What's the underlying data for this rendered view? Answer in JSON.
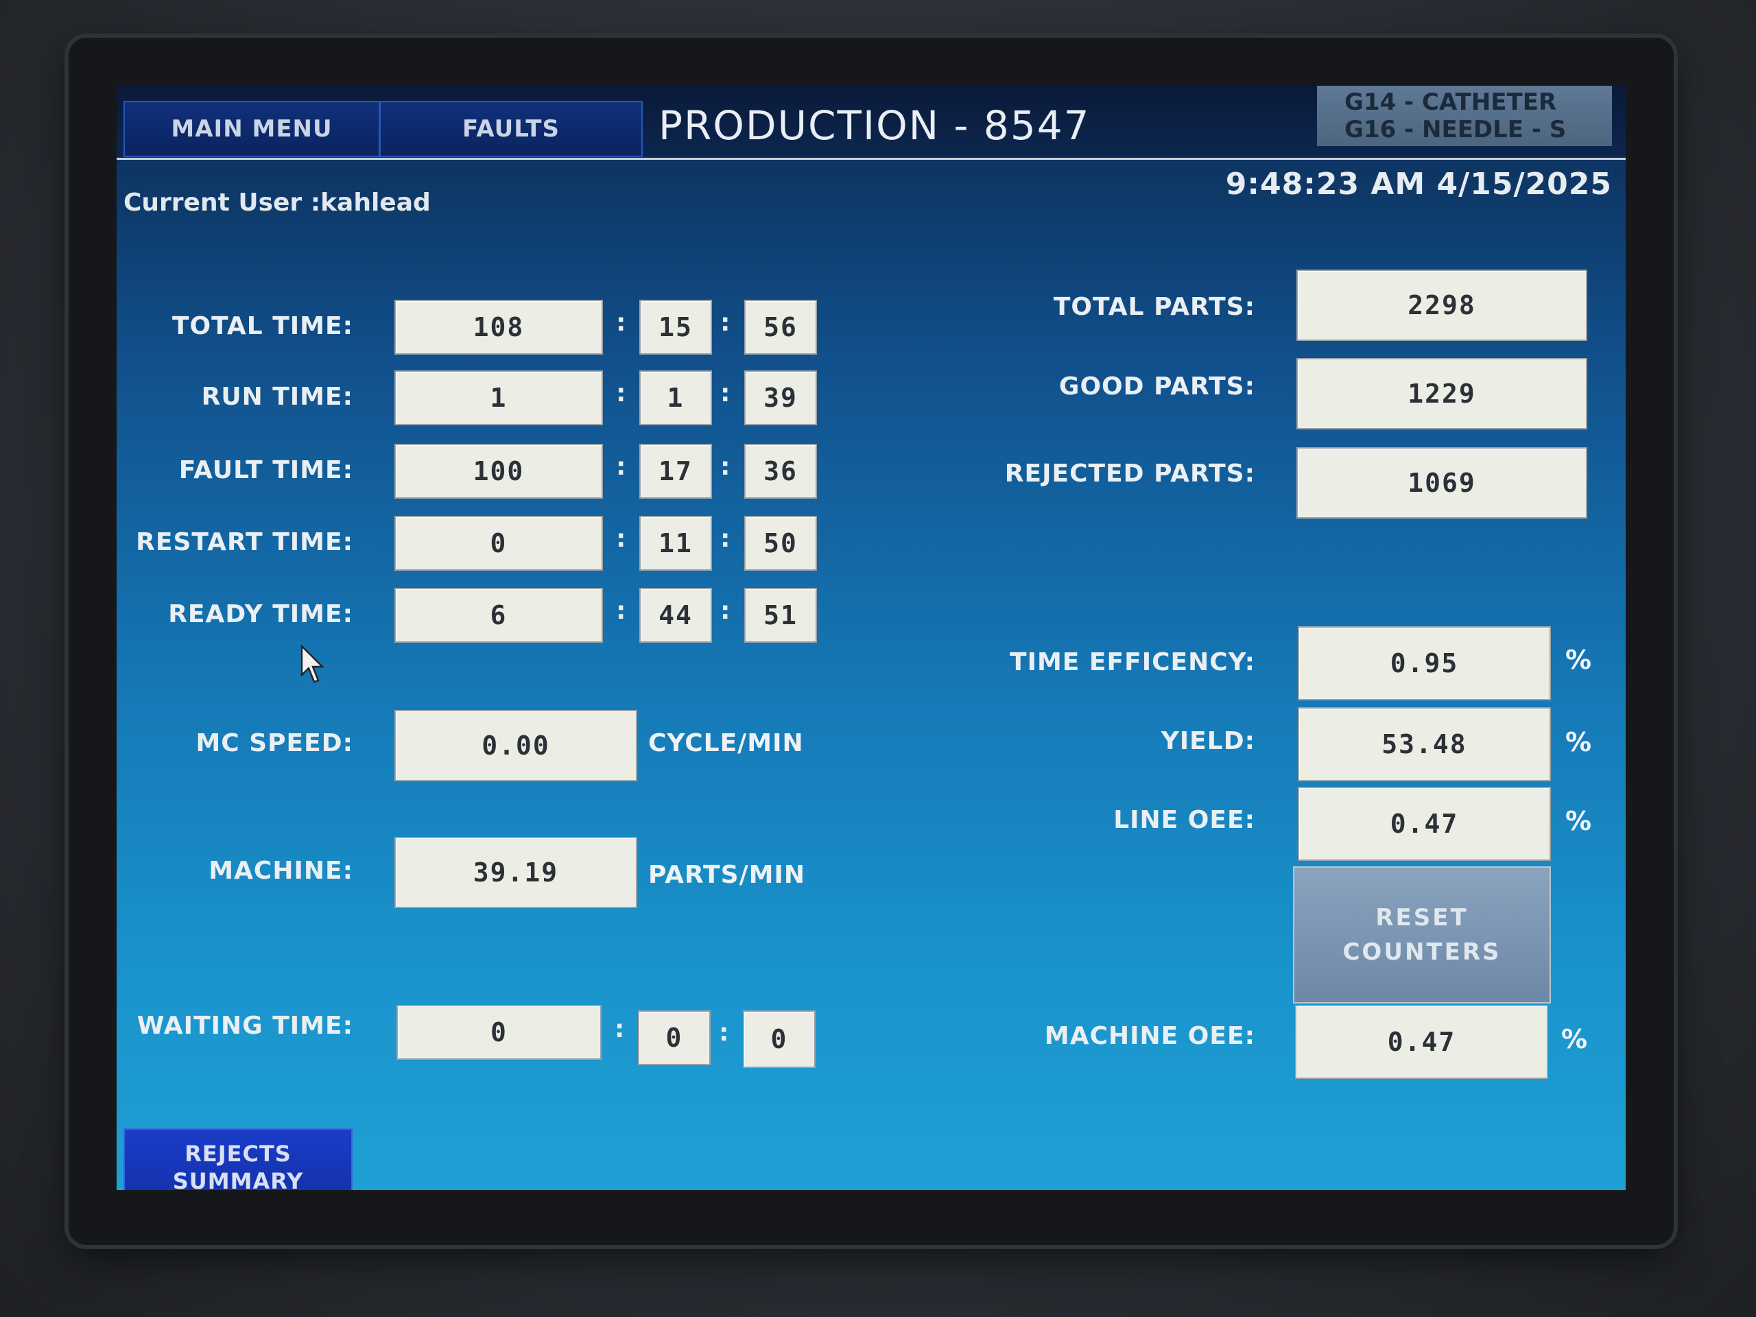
{
  "header": {
    "main_menu": "MAIN MENU",
    "faults": "FAULTS",
    "title": "PRODUCTION - 8547",
    "model_line1": "G14 - CATHETER",
    "model_line2": "G16 - NEEDLE - S",
    "clock": "9:48:23 AM 4/15/2025"
  },
  "user": {
    "label": "Current User :kahlead"
  },
  "times": [
    {
      "label": "TOTAL TIME:",
      "h": "108",
      "m": "15",
      "s": "56"
    },
    {
      "label": "RUN TIME:",
      "h": "1",
      "m": "1",
      "s": "39"
    },
    {
      "label": "FAULT TIME:",
      "h": "100",
      "m": "17",
      "s": "36"
    },
    {
      "label": "RESTART TIME:",
      "h": "0",
      "m": "11",
      "s": "50"
    },
    {
      "label": "READY TIME:",
      "h": "6",
      "m": "44",
      "s": "51"
    }
  ],
  "colon": ":",
  "mc_speed": {
    "label": "MC SPEED:",
    "value": "0.00",
    "unit": "CYCLE/MIN"
  },
  "machine": {
    "label": "MACHINE:",
    "value": "39.19",
    "unit": "PARTS/MIN"
  },
  "waiting": {
    "label": "WAITING TIME:",
    "h": "0",
    "m": "0",
    "s": "0"
  },
  "parts": {
    "total_label": "TOTAL PARTS:",
    "total": "2298",
    "good_label": "GOOD PARTS:",
    "good": "1229",
    "rejected_label": "REJECTED PARTS:",
    "rejected": "1069"
  },
  "metrics": {
    "time_eff_label": "TIME EFFICENCY:",
    "time_eff": "0.95",
    "yield_label": "YIELD:",
    "yield": "53.48",
    "line_oee_label": "LINE OEE:",
    "line_oee": "0.47",
    "machine_oee_label": "MACHINE OEE:",
    "machine_oee": "0.47",
    "pct": "%"
  },
  "buttons": {
    "reset_line1": "RESET",
    "reset_line2": "COUNTERS",
    "rejects_line1": "REJECTS",
    "rejects_line2": "SUMMARY"
  },
  "icons": {
    "cursor": "mouse-pointer-icon"
  }
}
